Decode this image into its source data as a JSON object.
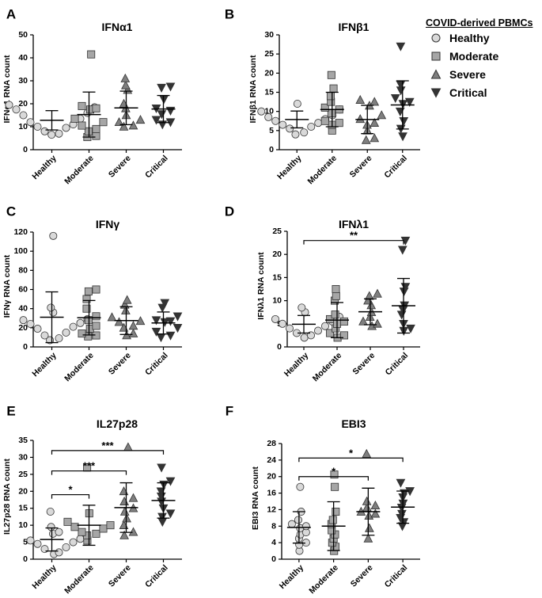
{
  "legend": {
    "title": "COVID-derived PBMCs",
    "items": [
      "Healthy",
      "Moderate",
      "Severe",
      "Critical"
    ]
  },
  "colors": {
    "healthy": "#d9d9d9",
    "moderate": "#a6a6a6",
    "severe": "#7f7f7f",
    "critical": "#333333",
    "edge": "#333333"
  },
  "chart_data": [
    {
      "type": "scatter",
      "panel_label": "A",
      "title": "IFNα1",
      "ylabel": "IFNα1 RNA count",
      "categories": [
        "Healthy",
        "Moderate",
        "Severe",
        "Critical"
      ],
      "ylim": [
        0,
        50
      ],
      "yticks": [
        0,
        10,
        20,
        30,
        40,
        50
      ],
      "series": [
        {
          "name": "Healthy",
          "values": [
            19.5,
            18.5,
            17.5,
            16,
            15,
            13.5,
            12,
            11,
            10,
            9.5,
            8,
            7,
            6.5
          ],
          "mean": 12.8,
          "sd": 4.2
        },
        {
          "name": "Moderate",
          "values": [
            41.5,
            19,
            18,
            17.5,
            13.5,
            12,
            10.5,
            9,
            8,
            6,
            5.5
          ],
          "mean": 15.3,
          "sd": 9.8
        },
        {
          "name": "Severe",
          "values": [
            31,
            28,
            26,
            20,
            18,
            15,
            13,
            12,
            10.5,
            10
          ],
          "mean": 18.2,
          "sd": 7.3
        },
        {
          "name": "Critical",
          "values": [
            27.5,
            27,
            22,
            18,
            17,
            15.5,
            13,
            12,
            11
          ],
          "mean": 17.7,
          "sd": 5.9
        }
      ],
      "significance": []
    },
    {
      "type": "scatter",
      "panel_label": "B",
      "title": "IFNβ1",
      "ylabel": "IFNβ1 RNA count",
      "categories": [
        "Healthy",
        "Moderate",
        "Severe",
        "Critical"
      ],
      "ylim": [
        0,
        30
      ],
      "yticks": [
        0,
        5,
        10,
        15,
        20,
        25,
        30
      ],
      "series": [
        {
          "name": "Healthy",
          "values": [
            12,
            10.5,
            10,
            9,
            8.5,
            8,
            7.5,
            7,
            6.5,
            6,
            5.5,
            4.5,
            4
          ],
          "mean": 7.9,
          "sd": 2.2
        },
        {
          "name": "Moderate",
          "values": [
            19.5,
            16,
            14,
            12.5,
            11,
            10.5,
            9.5,
            7.5,
            7,
            6.5,
            5
          ],
          "mean": 10.5,
          "sd": 4.5
        },
        {
          "name": "Severe",
          "values": [
            13,
            12.5,
            11.5,
            9,
            8,
            7,
            6.5,
            5,
            3,
            2.5
          ],
          "mean": 7.9,
          "sd": 3.7
        },
        {
          "name": "Critical",
          "values": [
            27,
            17,
            15.5,
            13.5,
            12.5,
            12,
            10,
            7.5,
            5.5,
            3.5
          ],
          "mean": 11.7,
          "sd": 6.3
        }
      ],
      "significance": []
    },
    {
      "type": "scatter",
      "panel_label": "C",
      "title": "IFNγ",
      "ylabel": "IFNγ RNA count",
      "categories": [
        "Healthy",
        "Moderate",
        "Severe",
        "Critical"
      ],
      "ylim": [
        0,
        120
      ],
      "yticks": [
        0,
        20,
        40,
        60,
        80,
        100,
        120
      ],
      "series": [
        {
          "name": "Healthy",
          "values": [
            116,
            41,
            36,
            29,
            28,
            25,
            24,
            21,
            19,
            15,
            12,
            9,
            7
          ],
          "mean": 31,
          "sd": 26.5
        },
        {
          "name": "Moderate",
          "values": [
            60,
            58,
            50,
            40,
            32,
            28,
            22,
            19,
            14,
            12,
            11
          ],
          "mean": 30.5,
          "sd": 18
        },
        {
          "name": "Severe",
          "values": [
            49,
            44,
            38,
            31,
            27,
            26,
            22,
            20,
            14,
            12
          ],
          "mean": 27.5,
          "sd": 14.5
        },
        {
          "name": "Critical",
          "values": [
            46,
            41,
            32,
            28,
            27,
            26,
            20,
            16,
            12,
            10
          ],
          "mean": 25,
          "sd": 11.5
        }
      ],
      "significance": []
    },
    {
      "type": "scatter",
      "panel_label": "D",
      "title": "IFNλ1",
      "ylabel": "IFNλ1 RNA count",
      "categories": [
        "Healthy",
        "Moderate",
        "Severe",
        "Critical"
      ],
      "ylim": [
        0,
        25
      ],
      "yticks": [
        0,
        5,
        10,
        15,
        20,
        25
      ],
      "series": [
        {
          "name": "Healthy",
          "values": [
            8.5,
            7.5,
            6.5,
            6,
            5.5,
            5,
            4.5,
            4,
            3.5,
            3,
            2.5,
            2
          ],
          "mean": 4.9,
          "sd": 1.9
        },
        {
          "name": "Moderate",
          "values": [
            12.5,
            11,
            10,
            7,
            6,
            5.5,
            5,
            4,
            3,
            2.5,
            2
          ],
          "mean": 5.8,
          "sd": 3.8
        },
        {
          "name": "Severe",
          "values": [
            11.5,
            11,
            10,
            9,
            7.5,
            6.5,
            5.5,
            5,
            4.5
          ],
          "mean": 7.6,
          "sd": 2.8
        },
        {
          "name": "Critical",
          "values": [
            23,
            21,
            13,
            12,
            9,
            8,
            7,
            5,
            4,
            3.5
          ],
          "mean": 8.9,
          "sd": 5.9
        }
      ],
      "significance": [
        {
          "from": "Healthy",
          "to": "Critical",
          "label": "**",
          "y": 23
        }
      ]
    },
    {
      "type": "scatter",
      "panel_label": "E",
      "title": "IL27p28",
      "ylabel": "IL27p28 RNA count",
      "categories": [
        "Healthy",
        "Moderate",
        "Severe",
        "Critical"
      ],
      "ylim": [
        0,
        35
      ],
      "yticks": [
        0,
        5,
        10,
        15,
        20,
        25,
        30,
        35
      ],
      "series": [
        {
          "name": "Healthy",
          "values": [
            14,
            9.5,
            8,
            7.5,
            6,
            5.5,
            5,
            4.5,
            3.5,
            3,
            2,
            1.5
          ],
          "mean": 5.8,
          "sd": 3.4
        },
        {
          "name": "Moderate",
          "values": [
            27,
            13.5,
            11,
            10,
            9.5,
            9,
            8,
            7.5,
            7,
            5.5
          ],
          "mean": 10,
          "sd": 5.9
        },
        {
          "name": "Severe",
          "values": [
            33,
            20,
            18,
            17,
            15,
            14,
            12,
            10,
            8,
            7
          ],
          "mean": 15.2,
          "sd": 7.3
        },
        {
          "name": "Critical",
          "values": [
            27,
            23,
            22,
            20,
            18.5,
            17,
            15,
            13.5,
            12.5,
            11
          ],
          "mean": 17.3,
          "sd": 5.2
        }
      ],
      "significance": [
        {
          "from": "Healthy",
          "to": "Moderate",
          "label": "*",
          "y": 19
        },
        {
          "from": "Healthy",
          "to": "Severe",
          "label": "***",
          "y": 26
        },
        {
          "from": "Healthy",
          "to": "Critical",
          "label": "***",
          "y": 32
        }
      ]
    },
    {
      "type": "scatter",
      "panel_label": "F",
      "title": "EBI3",
      "ylabel": "EBI3 RNA count",
      "categories": [
        "Healthy",
        "Moderate",
        "Severe",
        "Critical"
      ],
      "ylim": [
        0,
        28
      ],
      "yticks": [
        0,
        4,
        8,
        12,
        16,
        20,
        24,
        28
      ],
      "series": [
        {
          "name": "Healthy",
          "values": [
            17.5,
            11.5,
            9.5,
            8.5,
            8,
            7.5,
            6.5,
            6,
            5,
            4,
            3.5,
            2
          ],
          "mean": 7.7,
          "sd": 3.8
        },
        {
          "name": "Moderate",
          "values": [
            20.5,
            17.5,
            11.5,
            9.5,
            8.5,
            7,
            6,
            5,
            4,
            3,
            2
          ],
          "mean": 8,
          "sd": 5.9
        },
        {
          "name": "Severe",
          "values": [
            25.5,
            14,
            13,
            12.5,
            11.5,
            11,
            10.5,
            7.5,
            5
          ],
          "mean": 11.5,
          "sd": 5.7
        },
        {
          "name": "Critical",
          "values": [
            18.5,
            16.5,
            16,
            15,
            13.5,
            12.5,
            11,
            10,
            9,
            8
          ],
          "mean": 12.6,
          "sd": 3.9
        }
      ],
      "significance": [
        {
          "from": "Healthy",
          "to": "Severe",
          "label": "*",
          "y": 20
        },
        {
          "from": "Healthy",
          "to": "Critical",
          "label": "*",
          "y": 24.5
        }
      ]
    }
  ]
}
